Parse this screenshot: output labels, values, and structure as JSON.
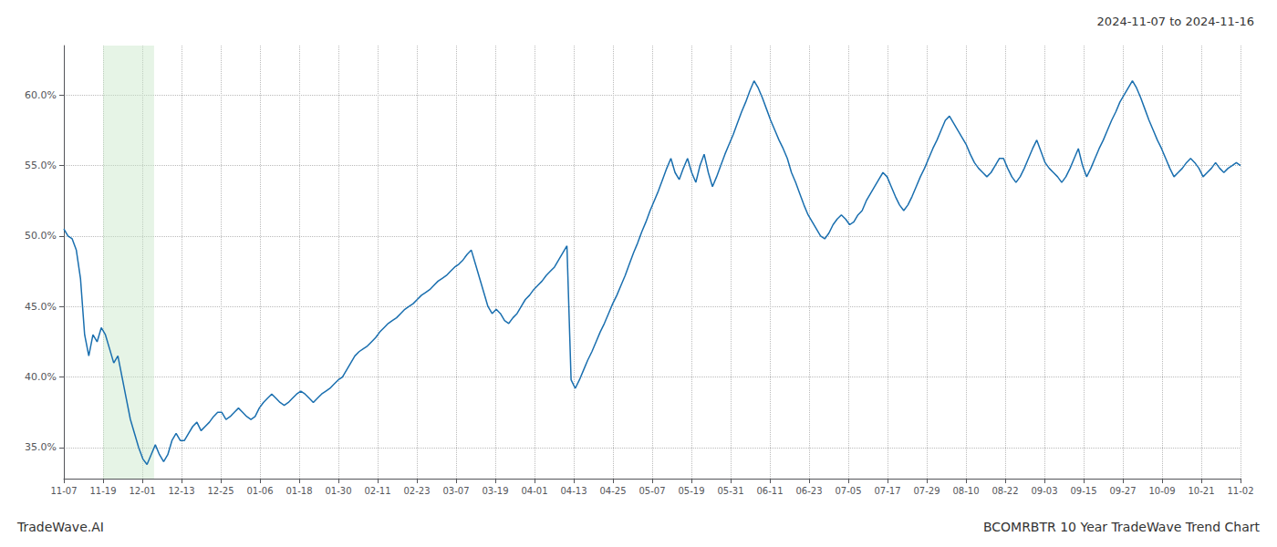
{
  "chart_data": {
    "type": "line",
    "title": "BCOMRBTR 10 Year TradeWave Trend Chart",
    "subtitle": "2024-11-07 to 2024-11-16",
    "annotations": [
      "TradeWave.AI"
    ],
    "color": "#1a6faf",
    "grid": true,
    "highlight": {
      "x": [
        1.0,
        2.3
      ],
      "color": "#c8e6c8"
    },
    "xlim": [
      0,
      30
    ],
    "xticks": [
      {
        "value": 0,
        "label": "11-07"
      },
      {
        "value": 1,
        "label": "11-19"
      },
      {
        "value": 2,
        "label": "12-01"
      },
      {
        "value": 3,
        "label": "12-13"
      },
      {
        "value": 4,
        "label": "12-25"
      },
      {
        "value": 5,
        "label": "01-06"
      },
      {
        "value": 6,
        "label": "01-18"
      },
      {
        "value": 7,
        "label": "01-30"
      },
      {
        "value": 8,
        "label": "02-11"
      },
      {
        "value": 9,
        "label": "02-23"
      },
      {
        "value": 10,
        "label": "03-07"
      },
      {
        "value": 11,
        "label": "03-19"
      },
      {
        "value": 12,
        "label": "04-01"
      },
      {
        "value": 13,
        "label": "04-13"
      },
      {
        "value": 14,
        "label": "04-25"
      },
      {
        "value": 15,
        "label": "05-07"
      },
      {
        "value": 16,
        "label": "05-19"
      },
      {
        "value": 17,
        "label": "05-31"
      },
      {
        "value": 18,
        "label": "06-11"
      },
      {
        "value": 19,
        "label": "06-23"
      },
      {
        "value": 20,
        "label": "07-05"
      },
      {
        "value": 21,
        "label": "07-17"
      },
      {
        "value": 22,
        "label": "07-29"
      },
      {
        "value": 23,
        "label": "08-10"
      },
      {
        "value": 24,
        "label": "08-22"
      },
      {
        "value": 25,
        "label": "09-03"
      },
      {
        "value": 26,
        "label": "09-15"
      },
      {
        "value": 27,
        "label": "09-27"
      },
      {
        "value": 28,
        "label": "10-09"
      },
      {
        "value": 29,
        "label": "10-21"
      },
      {
        "value": 30,
        "label": "11-02"
      }
    ],
    "ylim": [
      0.328,
      0.635
    ],
    "yticks": [
      {
        "value": 0.35,
        "label": "35.0%"
      },
      {
        "value": 0.4,
        "label": "40.0%"
      },
      {
        "value": 0.45,
        "label": "45.0%"
      },
      {
        "value": 0.5,
        "label": "50.0%"
      },
      {
        "value": 0.55,
        "label": "55.0%"
      },
      {
        "value": 0.6,
        "label": "60.0%"
      }
    ],
    "values": [
      0.505,
      0.5,
      0.498,
      0.49,
      0.47,
      0.43,
      0.415,
      0.43,
      0.425,
      0.435,
      0.43,
      0.42,
      0.41,
      0.415,
      0.4,
      0.385,
      0.37,
      0.36,
      0.35,
      0.342,
      0.338,
      0.345,
      0.352,
      0.345,
      0.34,
      0.345,
      0.355,
      0.36,
      0.355,
      0.355,
      0.36,
      0.365,
      0.368,
      0.362,
      0.365,
      0.368,
      0.372,
      0.375,
      0.375,
      0.37,
      0.372,
      0.375,
      0.378,
      0.375,
      0.372,
      0.37,
      0.372,
      0.378,
      0.382,
      0.385,
      0.388,
      0.385,
      0.382,
      0.38,
      0.382,
      0.385,
      0.388,
      0.39,
      0.388,
      0.385,
      0.382,
      0.385,
      0.388,
      0.39,
      0.392,
      0.395,
      0.398,
      0.4,
      0.405,
      0.41,
      0.415,
      0.418,
      0.42,
      0.422,
      0.425,
      0.428,
      0.432,
      0.435,
      0.438,
      0.44,
      0.442,
      0.445,
      0.448,
      0.45,
      0.452,
      0.455,
      0.458,
      0.46,
      0.462,
      0.465,
      0.468,
      0.47,
      0.472,
      0.475,
      0.478,
      0.48,
      0.483,
      0.487,
      0.49,
      0.48,
      0.47,
      0.46,
      0.45,
      0.445,
      0.448,
      0.445,
      0.44,
      0.438,
      0.442,
      0.445,
      0.45,
      0.455,
      0.458,
      0.462,
      0.465,
      0.468,
      0.472,
      0.475,
      0.478,
      0.483,
      0.488,
      0.493,
      0.398,
      0.392,
      0.398,
      0.405,
      0.412,
      0.418,
      0.425,
      0.432,
      0.438,
      0.445,
      0.452,
      0.458,
      0.465,
      0.472,
      0.48,
      0.488,
      0.495,
      0.503,
      0.51,
      0.518,
      0.525,
      0.532,
      0.54,
      0.548,
      0.555,
      0.545,
      0.54,
      0.548,
      0.555,
      0.545,
      0.538,
      0.55,
      0.558,
      0.545,
      0.535,
      0.542,
      0.55,
      0.558,
      0.565,
      0.572,
      0.58,
      0.588,
      0.595,
      0.603,
      0.61,
      0.605,
      0.598,
      0.59,
      0.582,
      0.575,
      0.568,
      0.562,
      0.555,
      0.545,
      0.538,
      0.53,
      0.522,
      0.515,
      0.51,
      0.505,
      0.5,
      0.498,
      0.502,
      0.508,
      0.512,
      0.515,
      0.512,
      0.508,
      0.51,
      0.515,
      0.518,
      0.525,
      0.53,
      0.535,
      0.54,
      0.545,
      0.542,
      0.535,
      0.528,
      0.522,
      0.518,
      0.522,
      0.528,
      0.535,
      0.542,
      0.548,
      0.555,
      0.562,
      0.568,
      0.575,
      0.582,
      0.585,
      0.58,
      0.575,
      0.57,
      0.565,
      0.558,
      0.552,
      0.548,
      0.545,
      0.542,
      0.545,
      0.55,
      0.555,
      0.555,
      0.548,
      0.542,
      0.538,
      0.542,
      0.548,
      0.555,
      0.562,
      0.568,
      0.56,
      0.552,
      0.548,
      0.545,
      0.542,
      0.538,
      0.542,
      0.548,
      0.555,
      0.562,
      0.55,
      0.542,
      0.548,
      0.555,
      0.562,
      0.568,
      0.575,
      0.582,
      0.588,
      0.595,
      0.6,
      0.605,
      0.61,
      0.605,
      0.598,
      0.59,
      0.582,
      0.575,
      0.568,
      0.562,
      0.555,
      0.548,
      0.542,
      0.545,
      0.548,
      0.552,
      0.555,
      0.552,
      0.548,
      0.542,
      0.545,
      0.548,
      0.552,
      0.548,
      0.545,
      0.548,
      0.55,
      0.552,
      0.55
    ]
  }
}
